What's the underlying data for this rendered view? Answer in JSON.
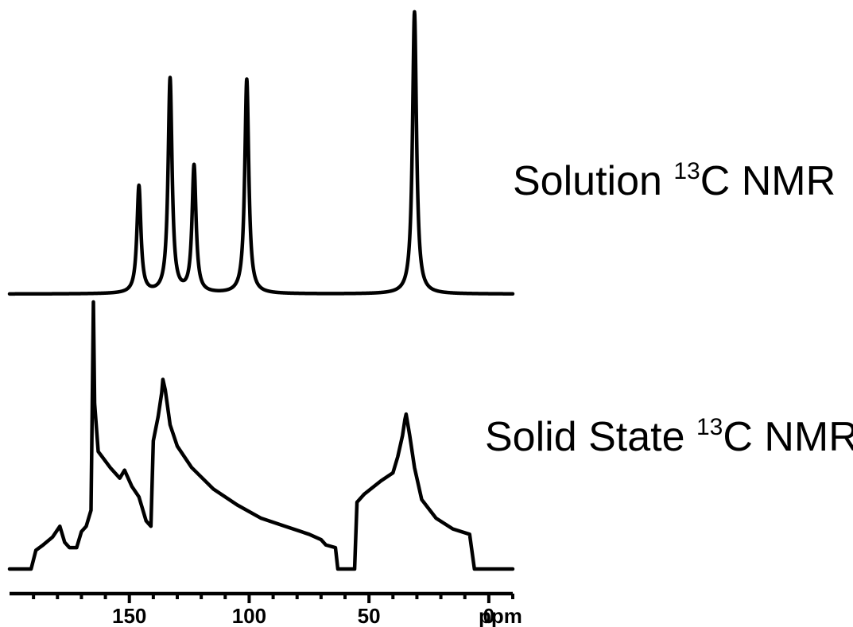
{
  "chart_data": {
    "type": "line",
    "x_axis": {
      "reversed": true,
      "range": [
        200,
        -10
      ],
      "major_ticks": [
        150,
        100,
        50,
        0
      ],
      "minor_ticks": [
        190,
        180,
        170,
        160,
        140,
        130,
        120,
        110,
        90,
        80,
        70,
        60,
        40,
        30,
        20,
        10,
        -10
      ],
      "tick_labels": [
        "150",
        "100",
        "50",
        "0"
      ],
      "unit_label": "ppm"
    },
    "grid": false,
    "series": [
      {
        "name": "Solution 13C NMR",
        "label_parts": {
          "prefix": "Solution ",
          "sup": "13",
          "suffix": "C NMR"
        },
        "style": "lorentzian-peaks",
        "peaks": [
          {
            "ppm": 146,
            "height": 0.38
          },
          {
            "ppm": 133,
            "height": 0.76
          },
          {
            "ppm": 123,
            "height": 0.45
          },
          {
            "ppm": 101,
            "height": 0.76
          },
          {
            "ppm": 31,
            "height": 1.0
          }
        ]
      },
      {
        "name": "Solid State 13C NMR",
        "label_parts": {
          "prefix": "Solid State ",
          "sup": "13",
          "suffix": "C NMR"
        },
        "style": "powder-pattern",
        "points": [
          [
            200,
            0.0
          ],
          [
            191,
            0.0
          ],
          [
            189,
            0.07
          ],
          [
            186,
            0.09
          ],
          [
            182,
            0.12
          ],
          [
            179,
            0.16
          ],
          [
            177,
            0.1
          ],
          [
            175,
            0.08
          ],
          [
            172,
            0.08
          ],
          [
            170,
            0.14
          ],
          [
            168,
            0.16
          ],
          [
            166,
            0.22
          ],
          [
            165.5,
            0.6
          ],
          [
            165,
            1.0
          ],
          [
            164.5,
            0.62
          ],
          [
            163,
            0.44
          ],
          [
            158,
            0.38
          ],
          [
            154,
            0.34
          ],
          [
            152,
            0.37
          ],
          [
            149,
            0.31
          ],
          [
            146,
            0.27
          ],
          [
            143,
            0.18
          ],
          [
            141,
            0.16
          ],
          [
            140,
            0.48
          ],
          [
            138,
            0.57
          ],
          [
            136.5,
            0.66
          ],
          [
            136,
            0.71
          ],
          [
            135,
            0.67
          ],
          [
            133,
            0.54
          ],
          [
            130,
            0.46
          ],
          [
            124,
            0.38
          ],
          [
            115,
            0.3
          ],
          [
            105,
            0.24
          ],
          [
            95,
            0.19
          ],
          [
            85,
            0.16
          ],
          [
            75,
            0.13
          ],
          [
            70,
            0.11
          ],
          [
            68,
            0.09
          ],
          [
            64,
            0.08
          ],
          [
            63,
            0.0
          ],
          [
            56,
            0.0
          ],
          [
            55,
            0.25
          ],
          [
            52,
            0.28
          ],
          [
            45,
            0.33
          ],
          [
            40,
            0.36
          ],
          [
            38,
            0.42
          ],
          [
            36,
            0.5
          ],
          [
            35,
            0.56
          ],
          [
            34.5,
            0.58
          ],
          [
            33,
            0.5
          ],
          [
            31,
            0.38
          ],
          [
            28,
            0.26
          ],
          [
            22,
            0.19
          ],
          [
            15,
            0.15
          ],
          [
            8,
            0.13
          ],
          [
            6,
            0.0
          ],
          [
            -10,
            0.0
          ]
        ]
      }
    ]
  }
}
